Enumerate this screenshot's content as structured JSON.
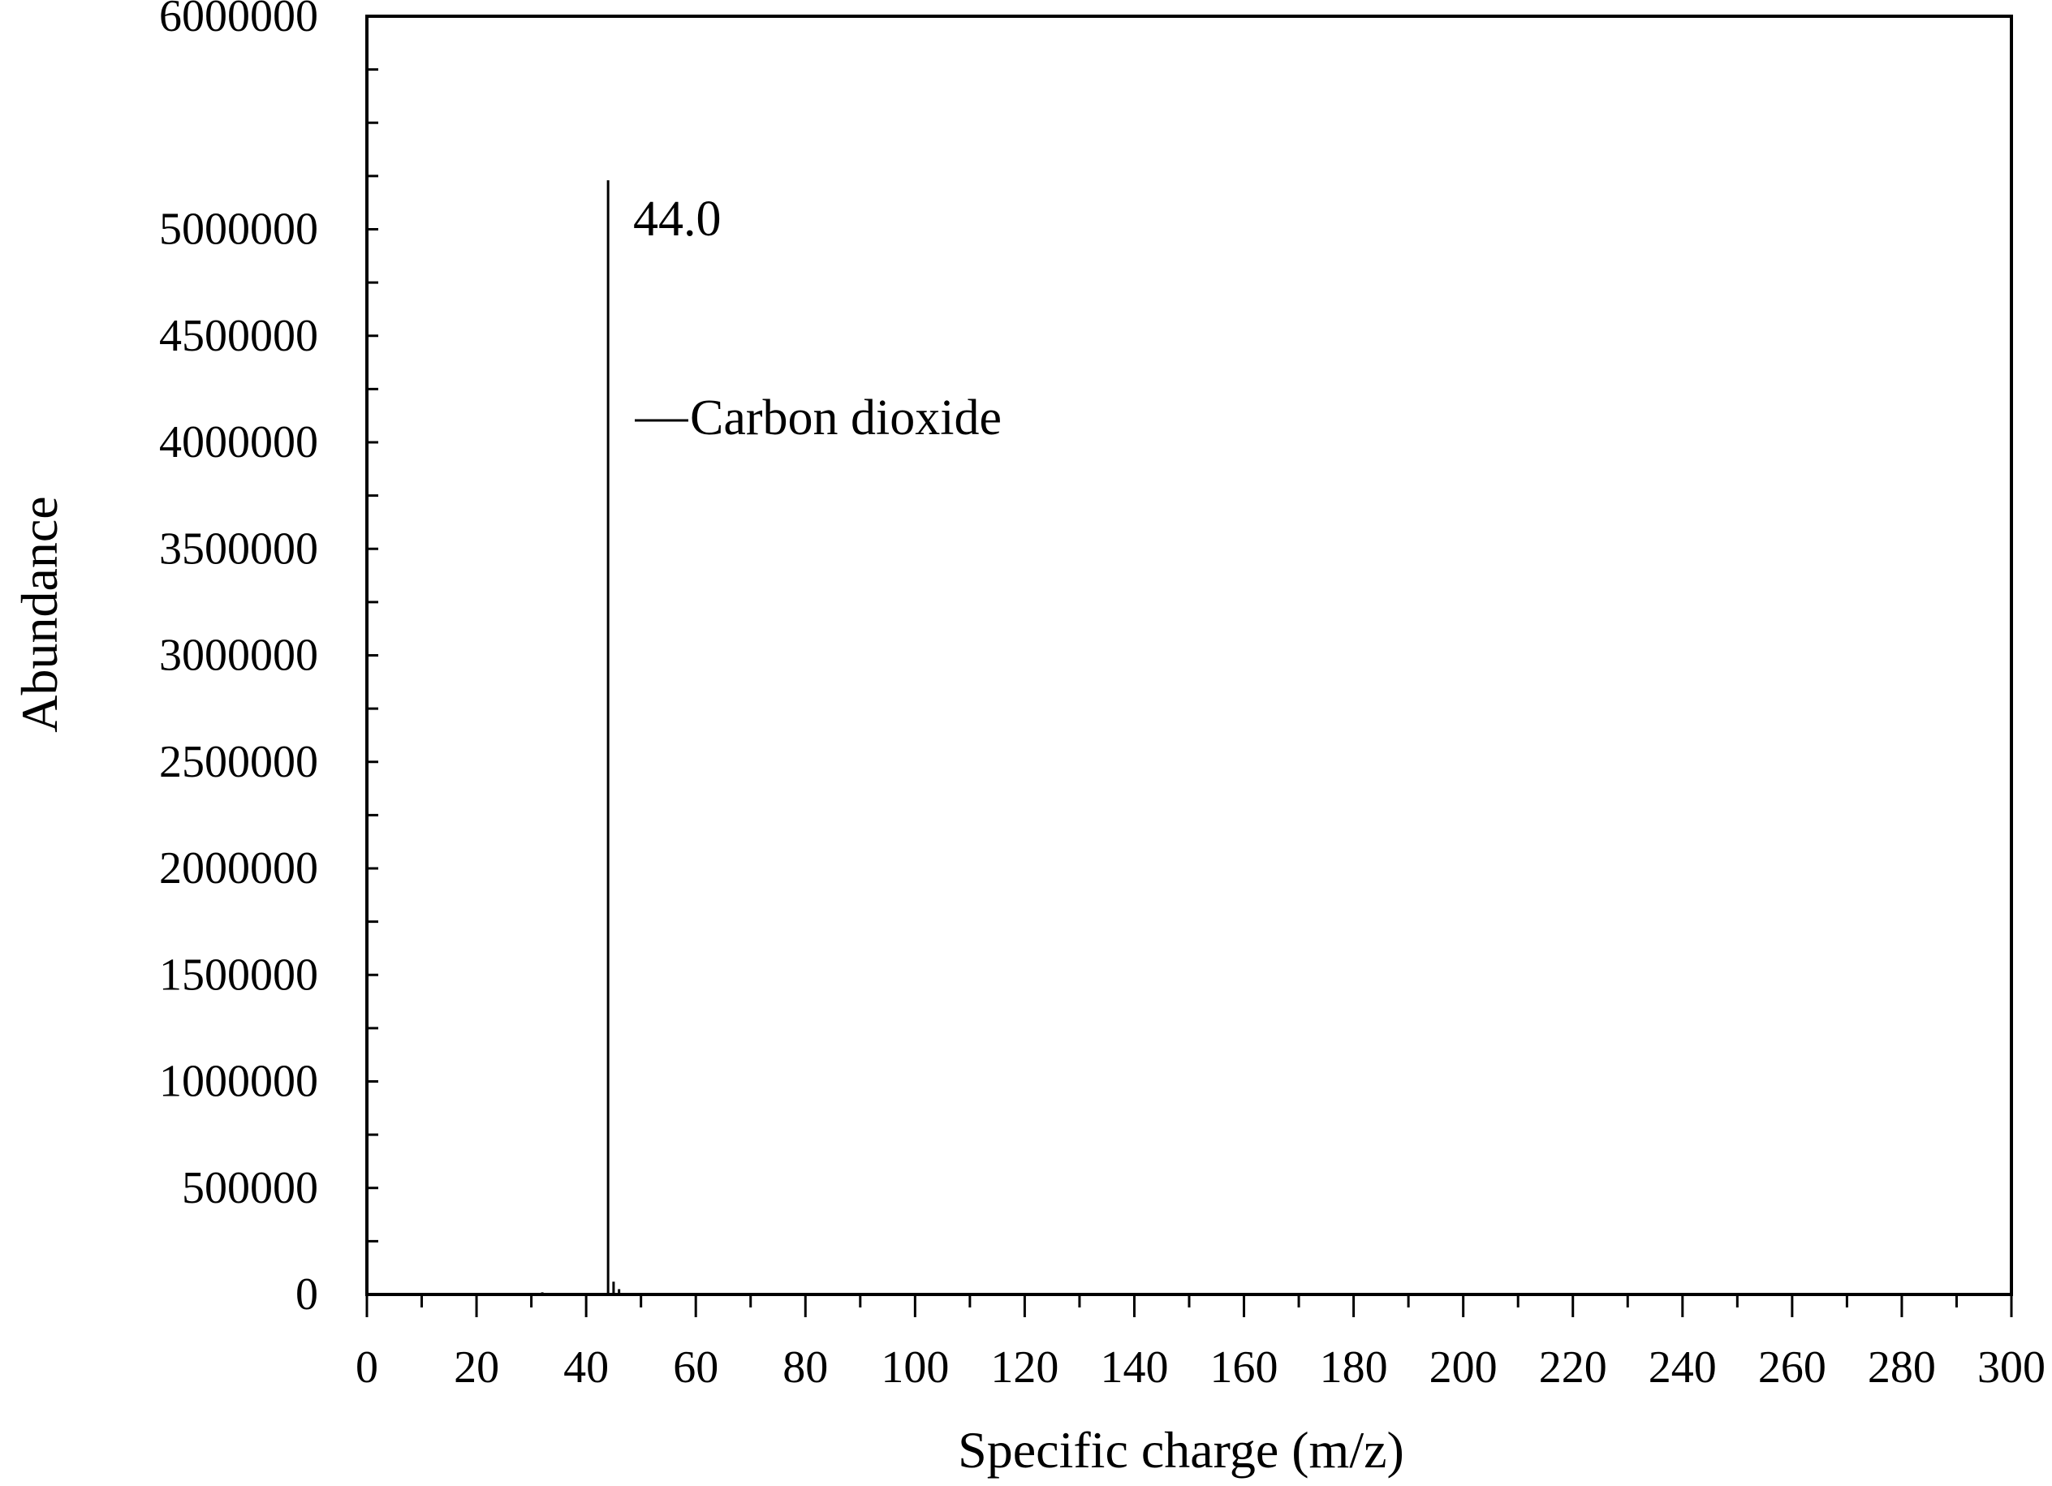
{
  "chart_data": {
    "type": "bar",
    "xlabel": "Specific charge (m/z)",
    "ylabel": "Abundance",
    "xlim": [
      0,
      300
    ],
    "ylim": [
      0,
      6000000
    ],
    "x_ticks": [
      0,
      20,
      40,
      60,
      80,
      100,
      120,
      140,
      160,
      180,
      200,
      220,
      240,
      260,
      280,
      300
    ],
    "y_ticks": [
      0,
      500000,
      1000000,
      1500000,
      2000000,
      2500000,
      3000000,
      3500000,
      4000000,
      4500000,
      5000000,
      6000000
    ],
    "series": [
      {
        "x": [
          28,
          32,
          44,
          45,
          46
        ],
        "values": [
          5000,
          10000,
          5230000,
          60000,
          25000
        ]
      }
    ],
    "annotations": {
      "peak_label": "44.0",
      "compound_label": "Carbon dioxide"
    },
    "grid": false,
    "line_color": "#000000"
  }
}
